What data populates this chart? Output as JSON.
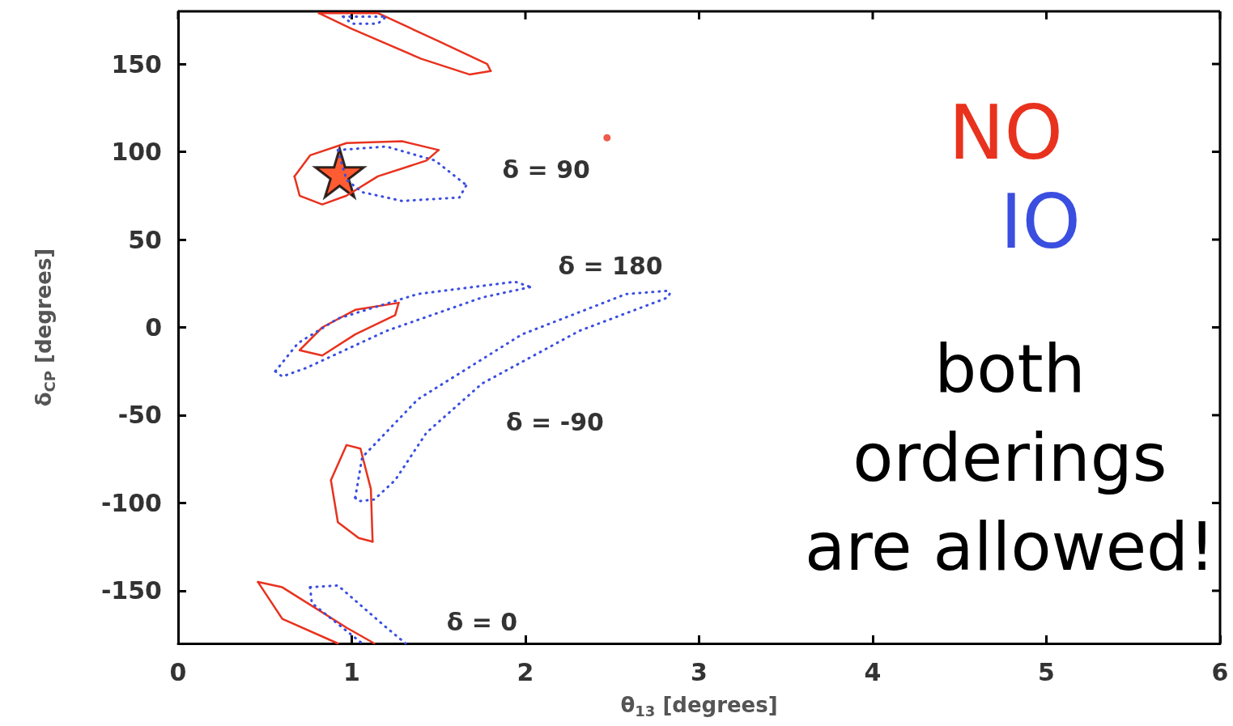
{
  "chart_data": {
    "type": "line",
    "xlabel": "θ$_{13}$ [degrees]",
    "ylabel": "δ$_{CP}$ [degrees]",
    "xlim": [
      0,
      6
    ],
    "ylim": [
      -180,
      180
    ],
    "xticks": [
      0,
      1,
      2,
      3,
      4,
      5,
      6
    ],
    "yticks": [
      -150,
      -100,
      -50,
      0,
      50,
      100,
      150
    ],
    "grid": false,
    "legend": "right",
    "marker": "none",
    "series": [
      {
        "name": "NO",
        "color": "#e8321e",
        "line_style": "solid",
        "x": [
          0.67,
          0.76,
          0.97,
          1.29,
          1.5
        ],
        "values": [
          86,
          98,
          105,
          106,
          101
        ]
      },
      {
        "name": "IO",
        "color": "#3a4ee0",
        "line_style": "dotted",
        "x": [
          0.92,
          1.2,
          1.48,
          1.66
        ],
        "values": [
          101,
          103,
          95,
          81
        ]
      },
      {
        "color": "#e8321e",
        "line_style": "solid",
        "x": [
          0.67,
          0.7,
          0.83,
          0.97,
          1.15,
          1.43,
          1.5
        ],
        "values": [
          86,
          75,
          70,
          75,
          86,
          95,
          101
        ]
      },
      {
        "color": "#e8321e",
        "line_style": "solid",
        "x": [
          0.81,
          1.15,
          1.5,
          1.78,
          1.8
        ],
        "values": [
          179,
          179,
          163,
          150,
          146
        ]
      },
      {
        "color": "#e8321e",
        "line_style": "solid",
        "x": [
          0.81,
          1.0,
          1.4,
          1.68,
          1.8
        ],
        "values": [
          179,
          170,
          153,
          144,
          146
        ]
      },
      {
        "color": "#e8321e",
        "line_style": "solid",
        "x": [
          0.7,
          0.83,
          1.02,
          1.27
        ],
        "values": [
          -13,
          0,
          10,
          14
        ]
      },
      {
        "color": "#e8321e",
        "line_style": "solid",
        "x": [
          0.7,
          0.83,
          1.02,
          1.25,
          1.27
        ],
        "values": [
          -13,
          -16,
          -4,
          7,
          14
        ]
      },
      {
        "color": "#e8321e",
        "line_style": "solid",
        "x": [
          0.88,
          0.97,
          1.05,
          1.11,
          1.12
        ],
        "values": [
          -87,
          -67,
          -69,
          -92,
          -122
        ]
      },
      {
        "color": "#e8321e",
        "line_style": "solid",
        "x": [
          0.88,
          0.92,
          1.04,
          1.12
        ],
        "values": [
          -87,
          -111,
          -120,
          -122
        ]
      },
      {
        "color": "#e8321e",
        "line_style": "solid",
        "x": [
          0.46,
          0.6,
          0.97,
          1.13
        ],
        "values": [
          -145,
          -148,
          -171,
          -180
        ]
      },
      {
        "color": "#e8321e",
        "line_style": "solid",
        "x": [
          0.46,
          0.6,
          0.92
        ],
        "values": [
          -145,
          -166,
          -180
        ]
      },
      {
        "color": "#3a4ee0",
        "line_style": "dotted",
        "x": [
          0.92,
          0.97,
          1.06,
          1.29,
          1.62,
          1.66
        ],
        "values": [
          101,
          84,
          77,
          72,
          74,
          81
        ]
      },
      {
        "color": "#3a4ee0",
        "line_style": "dotted",
        "x": [
          0.95,
          1.2
        ],
        "values": [
          177,
          177
        ]
      },
      {
        "color": "#3a4ee0",
        "line_style": "dotted",
        "x": [
          0.95,
          1.0,
          1.15,
          1.2
        ],
        "values": [
          177,
          173,
          173,
          177
        ]
      },
      {
        "color": "#3a4ee0",
        "line_style": "dotted",
        "x": [
          0.56,
          0.69,
          0.92,
          1.38,
          1.94,
          2.03
        ],
        "values": [
          -25,
          -9,
          5,
          19,
          26,
          23
        ]
      },
      {
        "color": "#3a4ee0",
        "line_style": "dotted",
        "x": [
          0.56,
          0.6,
          0.74,
          1.2,
          1.75,
          2.03
        ],
        "values": [
          -25,
          -28,
          -23,
          -2,
          17,
          23
        ]
      },
      {
        "color": "#3a4ee0",
        "line_style": "dotted",
        "x": [
          1.02,
          1.06,
          1.38,
          1.98,
          2.58,
          2.84
        ],
        "values": [
          -97,
          -74,
          -41,
          -4,
          19,
          21
        ]
      },
      {
        "color": "#3a4ee0",
        "line_style": "dotted",
        "x": [
          1.02,
          1.04,
          1.13,
          1.25,
          1.43,
          1.75,
          2.31,
          2.82,
          2.84
        ],
        "values": [
          -97,
          -99,
          -98,
          -87,
          -60,
          -32,
          -2,
          17,
          21
        ]
      },
      {
        "color": "#3a4ee0",
        "line_style": "dotted",
        "x": [
          0.76,
          0.92,
          1.2,
          1.31
        ],
        "values": [
          -148,
          -147,
          -171,
          -180
        ]
      },
      {
        "color": "#3a4ee0",
        "line_style": "dotted",
        "x": [
          0.76,
          0.77,
          1.06
        ],
        "values": [
          -148,
          -157,
          -180
        ]
      },
      {
        "type": "scatter",
        "marker": "star",
        "color": "#ff3300",
        "x": [
          0.93
        ],
        "values": [
          88
        ]
      },
      {
        "type": "scatter",
        "marker": "circle",
        "color": "#e8321e",
        "x": [
          2.47
        ],
        "values": [
          108
        ]
      }
    ],
    "annotations": [
      "δ = 90",
      "δ = 180",
      "δ = -90",
      "δ = 0",
      "both orderings are allowed!"
    ]
  }
}
